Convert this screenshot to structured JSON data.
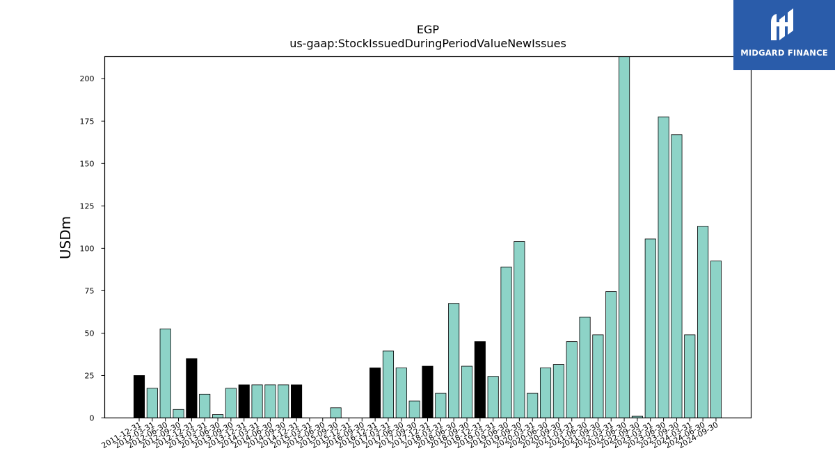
{
  "chart_data": {
    "type": "bar",
    "title": "EGP",
    "subtitle": "us-gaap:StockIssuedDuringPeriodValueNewIssues",
    "ylabel": "USDm",
    "xlabel": "",
    "ylim": [
      0,
      213
    ],
    "yticks": [
      0,
      25,
      50,
      75,
      100,
      125,
      150,
      175,
      200
    ],
    "grid": false,
    "colors": {
      "default": "#8dd3c7",
      "highlight": "#000000",
      "edge": "#000000"
    },
    "categories": [
      "2011-12-31",
      "2012-03-31",
      "2012-06-30",
      "2012-09-30",
      "2012-12-31",
      "2013-03-31",
      "2013-06-30",
      "2013-09-30",
      "2013-12-31",
      "2014-03-31",
      "2014-06-30",
      "2014-09-30",
      "2014-12-31",
      "2015-03-31",
      "2015-06-30",
      "2015-09-30",
      "2015-12-31",
      "2016-09-30",
      "2016-12-31",
      "2017-03-31",
      "2017-06-30",
      "2017-09-30",
      "2017-12-31",
      "2018-03-31",
      "2018-06-30",
      "2018-09-30",
      "2018-12-31",
      "2019-03-31",
      "2019-06-30",
      "2019-09-30",
      "2020-03-31",
      "2020-06-30",
      "2020-09-30",
      "2021-03-31",
      "2021-06-30",
      "2021-09-30",
      "2022-03-31",
      "2022-06-30",
      "2022-09-30",
      "2023-03-31",
      "2023-06-30",
      "2023-09-30",
      "2024-03-31",
      "2024-06-30",
      "2024-09-30"
    ],
    "values": [
      25,
      17.5,
      52.5,
      5,
      35,
      14,
      2,
      17.5,
      19.5,
      19.5,
      19.5,
      19.5,
      19.5,
      0,
      0,
      6,
      0,
      0,
      29.5,
      39.5,
      29.5,
      10,
      30.5,
      14.5,
      67.5,
      30.5,
      45,
      24.5,
      89,
      104,
      14.5,
      29.5,
      31.5,
      45,
      59.5,
      49,
      74.5,
      213,
      1,
      105.5,
      177.5,
      167,
      49,
      113,
      92.5
    ],
    "highlighted": [
      true,
      false,
      false,
      false,
      true,
      false,
      false,
      false,
      true,
      false,
      false,
      false,
      true,
      false,
      false,
      false,
      false,
      false,
      true,
      false,
      false,
      false,
      true,
      false,
      false,
      false,
      true,
      false,
      false,
      false,
      false,
      false,
      false,
      false,
      false,
      false,
      false,
      false,
      false,
      false,
      false,
      false,
      false,
      false,
      false
    ]
  },
  "logo": {
    "text": "MIDGARD FINANCE"
  }
}
